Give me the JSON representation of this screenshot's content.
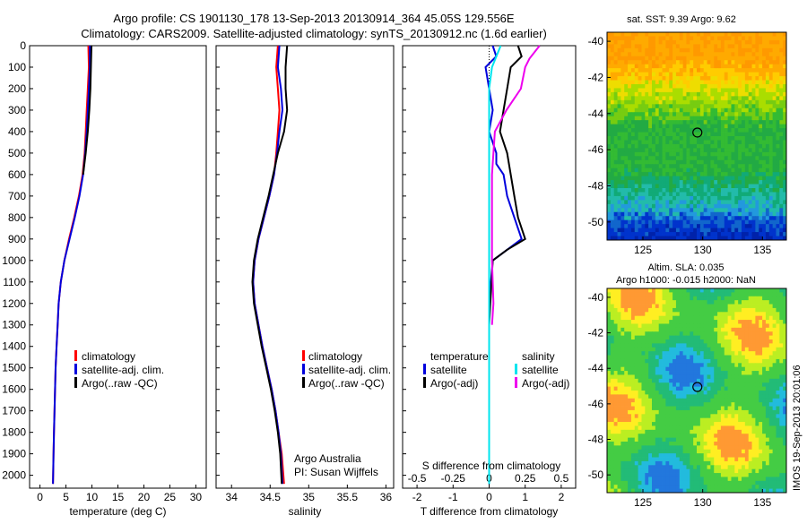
{
  "header": {
    "line1": "Argo profile: CS 1901130_178 13-Sep-2013 20130914_364 45.05S 129.556E",
    "line2": "Climatology: CARS2009. Satellite-adjusted climatology: synTS_20130912.nc (1.6d earlier)"
  },
  "colors": {
    "climatology": "#ff0000",
    "satellite": "#0000dd",
    "argo": "#000000",
    "sal_satellite": "#00e5ee",
    "sal_argo": "#ee00ee"
  },
  "chart_data": [
    {
      "type": "line",
      "name": "temperature",
      "xlabel": "temperature (deg C)",
      "xlim": [
        -2,
        32
      ],
      "ylim": [
        0,
        2060
      ],
      "xticks": [
        0,
        5,
        10,
        15,
        20,
        25,
        30
      ],
      "yticks": [
        0,
        100,
        200,
        300,
        400,
        500,
        600,
        700,
        800,
        900,
        1000,
        1100,
        1200,
        1300,
        1400,
        1500,
        1600,
        1700,
        1800,
        1900,
        2000
      ],
      "legend": [
        "climatology",
        "satellite-adj. clim.",
        "Argo(..raw -QC)"
      ],
      "series": [
        {
          "name": "climatology",
          "points": [
            [
              9.3,
              0
            ],
            [
              9.4,
              100
            ],
            [
              9.2,
              200
            ],
            [
              9.0,
              300
            ],
            [
              8.8,
              400
            ],
            [
              8.6,
              500
            ],
            [
              8.2,
              600
            ],
            [
              7.5,
              700
            ],
            [
              6.6,
              800
            ],
            [
              5.6,
              900
            ],
            [
              4.7,
              1000
            ],
            [
              4.0,
              1100
            ],
            [
              3.6,
              1200
            ],
            [
              3.4,
              1300
            ],
            [
              3.2,
              1400
            ],
            [
              3.0,
              1500
            ],
            [
              2.9,
              1600
            ],
            [
              2.8,
              1700
            ],
            [
              2.7,
              1800
            ],
            [
              2.6,
              1900
            ],
            [
              2.5,
              2040
            ]
          ]
        },
        {
          "name": "satellite-adj. clim.",
          "points": [
            [
              9.6,
              0
            ],
            [
              9.6,
              100
            ],
            [
              9.4,
              200
            ],
            [
              9.2,
              300
            ],
            [
              9.0,
              400
            ],
            [
              8.7,
              500
            ],
            [
              8.3,
              600
            ],
            [
              7.6,
              700
            ],
            [
              6.7,
              800
            ],
            [
              5.7,
              900
            ],
            [
              4.7,
              1000
            ],
            [
              4.0,
              1100
            ],
            [
              3.6,
              1200
            ],
            [
              3.4,
              1300
            ],
            [
              3.2,
              1400
            ],
            [
              3.0,
              1500
            ],
            [
              2.9,
              1600
            ],
            [
              2.8,
              1700
            ],
            [
              2.7,
              1800
            ],
            [
              2.6,
              1900
            ],
            [
              2.5,
              2040
            ]
          ]
        },
        {
          "name": "Argo",
          "points": [
            [
              9.9,
              0
            ],
            [
              9.8,
              100
            ],
            [
              9.7,
              200
            ],
            [
              9.5,
              300
            ],
            [
              9.2,
              400
            ],
            [
              8.8,
              500
            ],
            [
              8.3,
              600
            ]
          ]
        }
      ]
    },
    {
      "type": "line",
      "name": "salinity",
      "xlabel": "salinity",
      "xlim": [
        33.8,
        36.1
      ],
      "ylim": [
        0,
        2060
      ],
      "xticks": [
        34,
        34.5,
        35,
        35.5,
        36
      ],
      "legend": [
        "climatology",
        "satellite-adj. clim.",
        "Argo(..raw -QC)"
      ],
      "annotation": [
        "Argo Australia",
        "PI: Susan Wijffels"
      ],
      "series": [
        {
          "name": "climatology",
          "points": [
            [
              34.6,
              0
            ],
            [
              34.58,
              100
            ],
            [
              34.6,
              200
            ],
            [
              34.62,
              300
            ],
            [
              34.6,
              400
            ],
            [
              34.58,
              500
            ],
            [
              34.55,
              600
            ],
            [
              34.49,
              700
            ],
            [
              34.42,
              800
            ],
            [
              34.35,
              900
            ],
            [
              34.3,
              1000
            ],
            [
              34.28,
              1100
            ],
            [
              34.3,
              1200
            ],
            [
              34.35,
              1300
            ],
            [
              34.4,
              1400
            ],
            [
              34.46,
              1500
            ],
            [
              34.52,
              1600
            ],
            [
              34.57,
              1700
            ],
            [
              34.61,
              1800
            ],
            [
              34.65,
              1900
            ],
            [
              34.68,
              2040
            ]
          ]
        },
        {
          "name": "satellite-adj. clim.",
          "points": [
            [
              34.62,
              0
            ],
            [
              34.6,
              100
            ],
            [
              34.64,
              200
            ],
            [
              34.66,
              300
            ],
            [
              34.62,
              400
            ],
            [
              34.59,
              500
            ],
            [
              34.55,
              600
            ],
            [
              34.49,
              700
            ],
            [
              34.42,
              800
            ],
            [
              34.35,
              900
            ],
            [
              34.3,
              1000
            ],
            [
              34.28,
              1100
            ],
            [
              34.3,
              1200
            ],
            [
              34.35,
              1300
            ],
            [
              34.4,
              1400
            ],
            [
              34.46,
              1500
            ],
            [
              34.52,
              1600
            ],
            [
              34.57,
              1700
            ],
            [
              34.61,
              1800
            ],
            [
              34.64,
              1900
            ],
            [
              34.66,
              2040
            ]
          ]
        },
        {
          "name": "Argo",
          "points": [
            [
              34.72,
              0
            ],
            [
              34.7,
              100
            ],
            [
              34.7,
              200
            ],
            [
              34.72,
              300
            ],
            [
              34.68,
              400
            ],
            [
              34.6,
              500
            ],
            [
              34.54,
              600
            ],
            [
              34.48,
              700
            ],
            [
              34.41,
              800
            ],
            [
              34.34,
              900
            ],
            [
              34.29,
              1000
            ],
            [
              34.27,
              1100
            ],
            [
              34.29,
              1200
            ],
            [
              34.34,
              1300
            ],
            [
              34.39,
              1400
            ],
            [
              34.45,
              1500
            ],
            [
              34.51,
              1600
            ],
            [
              34.56,
              1700
            ],
            [
              34.6,
              1800
            ],
            [
              34.63,
              1900
            ],
            [
              34.65,
              2040
            ]
          ]
        }
      ]
    },
    {
      "type": "line",
      "name": "difference",
      "xlabel": "T difference from climatology",
      "xlabel_top": "S difference from climatology",
      "xlim": [
        -2.4,
        2.4
      ],
      "ylim": [
        0,
        2060
      ],
      "xticks": [
        -2,
        -1,
        0,
        1,
        2
      ],
      "xticks_top": [
        -0.5,
        -0.25,
        0,
        0.25,
        0.5
      ],
      "legend_left": [
        "temperature",
        "satellite",
        "Argo(-adj)"
      ],
      "legend_right": [
        "salinity",
        "satellite",
        "Argo(-adj)"
      ],
      "series": [
        {
          "name": "T satellite",
          "points": [
            [
              0.1,
              0
            ],
            [
              0.2,
              50
            ],
            [
              -0.1,
              100
            ],
            [
              0,
              200
            ],
            [
              0.1,
              300
            ],
            [
              0,
              400
            ],
            [
              0.2,
              500
            ],
            [
              0.2,
              550
            ],
            [
              0.4,
              600
            ],
            [
              0.5,
              700
            ],
            [
              0.7,
              800
            ],
            [
              0.9,
              900
            ],
            [
              0.5,
              950
            ],
            [
              0.1,
              1000
            ],
            [
              0,
              1200
            ],
            [
              0,
              1300
            ],
            [
              0,
              2040
            ]
          ]
        },
        {
          "name": "T Argo(-adj)",
          "points": [
            [
              0.8,
              0
            ],
            [
              0.9,
              50
            ],
            [
              0.6,
              100
            ],
            [
              0.5,
              200
            ],
            [
              0.4,
              300
            ],
            [
              0.3,
              400
            ],
            [
              0.5,
              500
            ],
            [
              0.6,
              600
            ],
            [
              0.7,
              700
            ],
            [
              0.8,
              800
            ],
            [
              1.0,
              900
            ],
            [
              0.5,
              950
            ],
            [
              0.1,
              1000
            ],
            [
              0,
              1300
            ]
          ]
        },
        {
          "name": "S satellite",
          "points": [
            [
              0.08,
              0
            ],
            [
              0.02,
              100
            ],
            [
              0,
              200
            ],
            [
              0,
              300
            ],
            [
              0,
              400
            ],
            [
              0,
              600
            ],
            [
              0,
              800
            ],
            [
              0,
              1000
            ],
            [
              0,
              1200
            ],
            [
              0,
              1400
            ],
            [
              0,
              1600
            ],
            [
              0,
              1800
            ],
            [
              0,
              2040
            ]
          ]
        },
        {
          "name": "S Argo(-adj)",
          "points": [
            [
              0.35,
              0
            ],
            [
              0.28,
              60
            ],
            [
              0.25,
              100
            ],
            [
              0.22,
              200
            ],
            [
              0.12,
              300
            ],
            [
              0.04,
              400
            ],
            [
              0.02,
              600
            ],
            [
              0.02,
              800
            ],
            [
              0.02,
              1000
            ],
            [
              0.03,
              1200
            ],
            [
              0.02,
              1300
            ]
          ]
        }
      ]
    },
    {
      "type": "heatmap",
      "name": "sst map",
      "title": "sat. SST: 9.39 Argo: 9.62",
      "xlim": [
        122,
        137
      ],
      "ylim": [
        -51,
        -39.5
      ],
      "xticks": [
        125,
        130,
        135
      ],
      "yticks": [
        -40,
        -42,
        -44,
        -46,
        -48,
        -50
      ],
      "marker": [
        129.556,
        -45.05
      ]
    },
    {
      "type": "heatmap",
      "name": "sla map",
      "title": [
        "Altim. SLA: 0.035",
        "Argo h1000: -0.015 h2000: NaN"
      ],
      "xlim": [
        122,
        137
      ],
      "ylim": [
        -51,
        -39.5
      ],
      "xticks": [
        125,
        130,
        135
      ],
      "yticks": [
        -40,
        -42,
        -44,
        -46,
        -48,
        -50
      ],
      "marker": [
        129.556,
        -45.05
      ]
    }
  ],
  "footer": "IMOS 19-Sep-2013 20:01:06"
}
